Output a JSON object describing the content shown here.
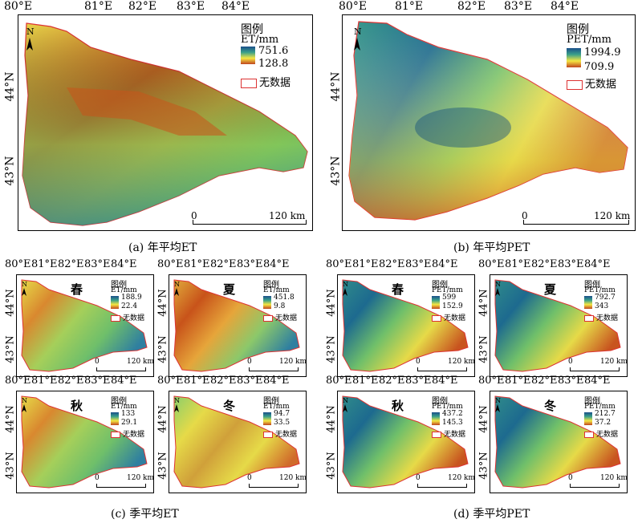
{
  "panels": {
    "a": {
      "caption": "(a) 年平均ET",
      "legend_title": "图例",
      "legend_unit": "ET/mm",
      "max": "751.6",
      "min": "128.8",
      "nodata": "无数据",
      "scale_zero": "0",
      "scale_label": "120 km",
      "lon_ticks": [
        "80°E",
        "81°E",
        "82°E",
        "83°E",
        "84°E"
      ],
      "lat_ticks": [
        "44°N",
        "43°N"
      ]
    },
    "b": {
      "caption": "(b) 年平均PET",
      "legend_title": "图例",
      "legend_unit": "PET/mm",
      "max": "1994.9",
      "min": "709.9",
      "nodata": "无数据",
      "scale_zero": "0",
      "scale_label": "120 km",
      "lon_ticks": [
        "80°E",
        "81°E",
        "82°E",
        "83°E",
        "84°E"
      ],
      "lat_ticks": [
        "44°N",
        "43°N"
      ]
    },
    "c": {
      "caption": "(c) 季平均ET",
      "lon_ticks": [
        "80°E",
        "81°E",
        "82°E",
        "83°E",
        "84°E"
      ],
      "lat_ticks": [
        "44°N",
        "43°N"
      ],
      "seasons": [
        {
          "name": "春",
          "legend_title": "图例",
          "legend_unit": "ET/mm",
          "max": "188.9",
          "min": "22.4",
          "nodata": "无数据",
          "scale_zero": "0",
          "scale_label": "120 km"
        },
        {
          "name": "夏",
          "legend_title": "图例",
          "legend_unit": "ET/mm",
          "max": "451.8",
          "min": "9.8",
          "nodata": "无数据",
          "scale_zero": "0",
          "scale_label": "120 km"
        },
        {
          "name": "秋",
          "legend_title": "图例",
          "legend_unit": "ET/mm",
          "max": "133",
          "min": "29.1",
          "nodata": "无数据",
          "scale_zero": "0",
          "scale_label": "120 km"
        },
        {
          "name": "冬",
          "legend_title": "图例",
          "legend_unit": "ET/mm",
          "max": "94.7",
          "min": "33.5",
          "nodata": "无数据",
          "scale_zero": "0",
          "scale_label": "120 km"
        }
      ]
    },
    "d": {
      "caption": "(d) 季平均PET",
      "lon_ticks": [
        "80°E",
        "81°E",
        "82°E",
        "83°E",
        "84°E"
      ],
      "lat_ticks": [
        "44°N",
        "43°N"
      ],
      "seasons": [
        {
          "name": "春",
          "legend_title": "图例",
          "legend_unit": "PET/mm",
          "max": "599",
          "min": "152.9",
          "nodata": "无数据",
          "scale_zero": "0",
          "scale_label": "120 km"
        },
        {
          "name": "夏",
          "legend_title": "图例",
          "legend_unit": "PET/mm",
          "max": "792.7",
          "min": "343",
          "nodata": "无数据",
          "scale_zero": "0",
          "scale_label": "120 km"
        },
        {
          "name": "秋",
          "legend_title": "图例",
          "legend_unit": "PET/mm",
          "max": "437.2",
          "min": "145.3",
          "nodata": "无数据",
          "scale_zero": "0",
          "scale_label": "120 km"
        },
        {
          "name": "冬",
          "legend_title": "图例",
          "legend_unit": "PET/mm",
          "max": "212.7",
          "min": "37.2",
          "nodata": "无数据",
          "scale_zero": "0",
          "scale_label": "120 km"
        }
      ]
    }
  },
  "north_arrow_label": "N",
  "colors": {
    "ramp_high": "#1a4f8a",
    "ramp_mid": "#f5e642",
    "ramp_low": "#c0451f",
    "nodata_outline": "#dd3333"
  }
}
